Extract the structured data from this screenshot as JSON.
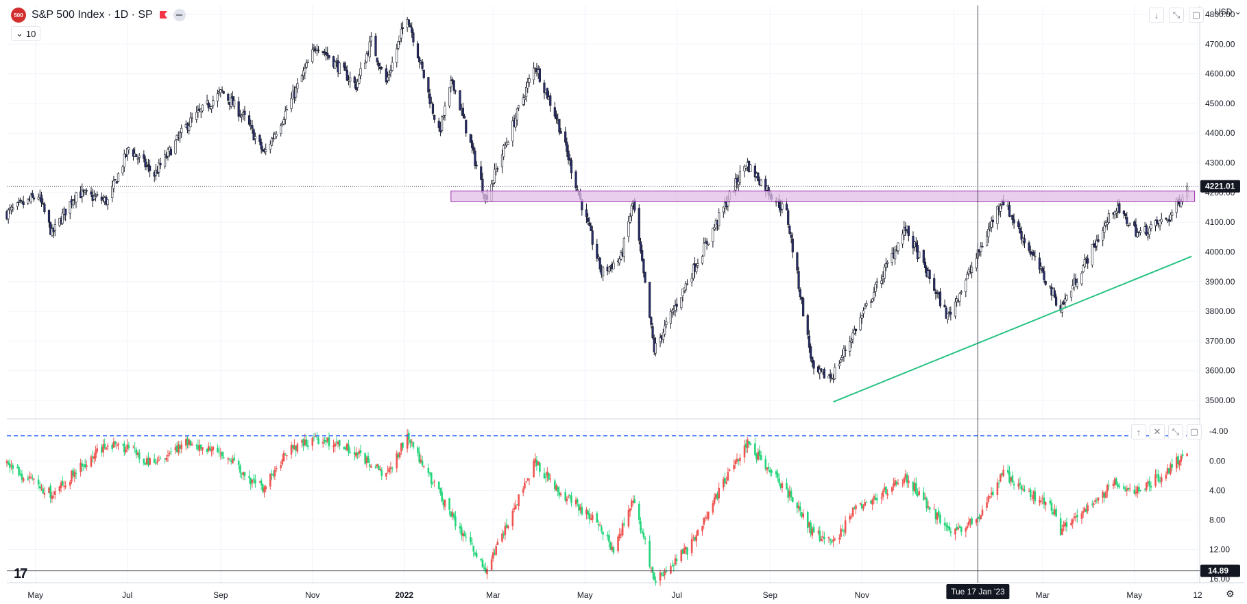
{
  "header": {
    "badge": "500",
    "title": "S&P 500 Index · 1D · SP",
    "volume_chip": "10",
    "currency": "USD"
  },
  "price_axis": {
    "ticks": [
      "4800.00",
      "4700.00",
      "4600.00",
      "4500.00",
      "4400.00",
      "4300.00",
      "4200.00",
      "4100.00",
      "4000.00",
      "3900.00",
      "3800.00",
      "3700.00",
      "3600.00",
      "3500.00"
    ],
    "last_price_label": "4221.01"
  },
  "indicator_axis": {
    "ticks": [
      "-4.00",
      "0.00",
      "4.00",
      "8.00",
      "12.00",
      "16.00"
    ],
    "last_value_label": "14.89"
  },
  "time_axis": {
    "ticks": [
      "May",
      "Jul",
      "Sep",
      "Nov",
      "2022",
      "Mar",
      "May",
      "Jul",
      "Sep",
      "Nov",
      "Jan",
      "Mar",
      "May",
      "12"
    ],
    "crosshair_label": "Tue 17 Jan '23"
  },
  "icons": [
    "sp500-badge-icon",
    "flag-icon",
    "hide-icon",
    "chevron-down-icon",
    "arrow-down-icon",
    "collapse-icon",
    "maximize-icon",
    "arrow-up-icon",
    "close-icon",
    "tradingview-logo-icon",
    "gear-icon"
  ],
  "colors": {
    "up_candle": "#ffffff",
    "down_candle": "#2a2e6e",
    "wick": "#131722",
    "support_zone": "#e1bee7",
    "support_zone_border": "#9c27b0",
    "trendline": "#26c281",
    "indicator_up": "#22d57a",
    "indicator_down": "#ef5350",
    "dashed_level": "#2962ff",
    "crosshair": "#434651",
    "frame": "#2962ff"
  },
  "chart_data": [
    {
      "type": "candlestick",
      "title": "S&P 500 Index · 1D · SP",
      "ylim": [
        3440,
        4830
      ],
      "x_range": [
        "2021-04-12",
        "2023-06-12"
      ],
      "last_price": 4221.01,
      "path": [
        [
          "2021-04-12",
          4130
        ],
        [
          "2021-05-03",
          4190
        ],
        [
          "2021-05-12",
          4060
        ],
        [
          "2021-05-28",
          4200
        ],
        [
          "2021-06-18",
          4170
        ],
        [
          "2021-07-02",
          4350
        ],
        [
          "2021-07-19",
          4260
        ],
        [
          "2021-08-10",
          4430
        ],
        [
          "2021-09-02",
          4540
        ],
        [
          "2021-09-17",
          4450
        ],
        [
          "2021-09-30",
          4330
        ],
        [
          "2021-10-15",
          4480
        ],
        [
          "2021-11-04",
          4700
        ],
        [
          "2021-11-30",
          4560
        ],
        [
          "2021-12-10",
          4710
        ],
        [
          "2021-12-20",
          4570
        ],
        [
          "2022-01-03",
          4800
        ],
        [
          "2022-01-24",
          4400
        ],
        [
          "2022-02-02",
          4580
        ],
        [
          "2022-02-24",
          4180
        ],
        [
          "2022-03-29",
          4630
        ],
        [
          "2022-04-13",
          4440
        ],
        [
          "2022-05-12",
          3930
        ],
        [
          "2022-05-25",
          3980
        ],
        [
          "2022-06-02",
          4170
        ],
        [
          "2022-06-16",
          3670
        ],
        [
          "2022-07-08",
          3900
        ],
        [
          "2022-08-16",
          4300
        ],
        [
          "2022-09-12",
          4130
        ],
        [
          "2022-09-30",
          3590
        ],
        [
          "2022-10-12",
          3580
        ],
        [
          "2022-11-30",
          4080
        ],
        [
          "2022-12-28",
          3780
        ],
        [
          "2023-01-17",
          3990
        ],
        [
          "2023-02-02",
          4180
        ],
        [
          "2023-03-13",
          3810
        ],
        [
          "2023-04-18",
          4150
        ],
        [
          "2023-05-04",
          4060
        ],
        [
          "2023-05-24",
          4115
        ],
        [
          "2023-06-05",
          4221
        ]
      ],
      "support_zone": [
        4170,
        4205
      ],
      "trendline": {
        "start": [
          "2022-10-13",
          3495
        ],
        "end": [
          "2023-06-08",
          3985
        ]
      }
    },
    {
      "type": "candlestick",
      "ylim": [
        16.5,
        -5.5
      ],
      "reversed_axis": true,
      "last_value": 14.89,
      "dashed_level": -3.4,
      "horizontal_level": 14.89,
      "path": [
        [
          "2021-04-12",
          0.5
        ],
        [
          "2021-05-12",
          4.5
        ],
        [
          "2021-06-01",
          0.6
        ],
        [
          "2021-06-18",
          -2.2
        ],
        [
          "2021-07-02",
          -1.6
        ],
        [
          "2021-07-19",
          0.6
        ],
        [
          "2021-08-10",
          -2.5
        ],
        [
          "2021-09-02",
          -1.0
        ],
        [
          "2021-09-17",
          2.0
        ],
        [
          "2021-09-30",
          3.8
        ],
        [
          "2021-10-15",
          -1.3
        ],
        [
          "2021-11-04",
          -3.0
        ],
        [
          "2021-11-30",
          -1.3
        ],
        [
          "2021-12-20",
          2.2
        ],
        [
          "2022-01-03",
          -3.5
        ],
        [
          "2022-01-24",
          4.5
        ],
        [
          "2022-02-24",
          15.0
        ],
        [
          "2022-03-29",
          0.2
        ],
        [
          "2022-04-13",
          3.8
        ],
        [
          "2022-05-12",
          9.0
        ],
        [
          "2022-05-20",
          12.5
        ],
        [
          "2022-06-02",
          5.0
        ],
        [
          "2022-06-16",
          16.0
        ],
        [
          "2022-07-08",
          12.0
        ],
        [
          "2022-08-16",
          -2.5
        ],
        [
          "2022-09-12",
          4.0
        ],
        [
          "2022-09-30",
          10.0
        ],
        [
          "2022-10-13",
          11.0
        ],
        [
          "2022-10-26",
          7.0
        ],
        [
          "2022-11-30",
          2.0
        ],
        [
          "2022-12-28",
          9.5
        ],
        [
          "2023-01-17",
          8.2
        ],
        [
          "2023-02-02",
          1.5
        ],
        [
          "2023-03-10",
          7.0
        ],
        [
          "2023-03-13",
          9.5
        ],
        [
          "2023-04-18",
          3.0
        ],
        [
          "2023-05-04",
          4.2
        ],
        [
          "2023-05-24",
          1.0
        ],
        [
          "2023-06-05",
          -1.0
        ]
      ]
    }
  ]
}
